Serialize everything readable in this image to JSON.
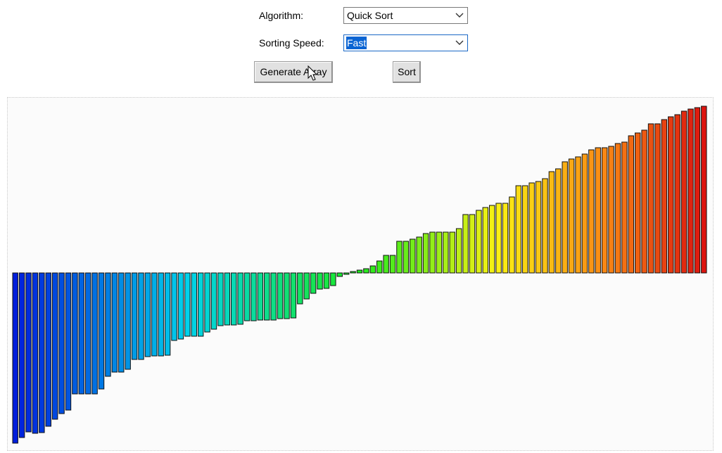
{
  "controls": {
    "algorithm_label": "Algorithm:",
    "algorithm_value": "Quick Sort",
    "speed_label": "Sorting Speed:",
    "speed_value": "Fast",
    "generate_label": "Generate Array",
    "sort_label": "Sort"
  },
  "array_values": [
    -242,
    -234,
    -226,
    -228,
    -227,
    -218,
    -208,
    -200,
    -195,
    -172,
    -172,
    -172,
    -172,
    -165,
    -147,
    -141,
    -141,
    -137,
    -123,
    -123,
    -119,
    -118,
    -118,
    -117,
    -96,
    -94,
    -90,
    -90,
    -90,
    -84,
    -80,
    -75,
    -74,
    -74,
    -73,
    -68,
    -68,
    -67,
    -67,
    -67,
    -65,
    -65,
    -64,
    -44,
    -37,
    -29,
    -23,
    -22,
    -18,
    -5,
    -1,
    1,
    4,
    6,
    10,
    17,
    25,
    25,
    45,
    45,
    48,
    51,
    56,
    58,
    58,
    58,
    58,
    63,
    83,
    83,
    89,
    93,
    96,
    99,
    99,
    108,
    124,
    124,
    128,
    130,
    134,
    144,
    148,
    158,
    162,
    165,
    169,
    175,
    178,
    178,
    180,
    184,
    186,
    195,
    199,
    203,
    212,
    212,
    218,
    222,
    225,
    230,
    233,
    235,
    237
  ]
}
